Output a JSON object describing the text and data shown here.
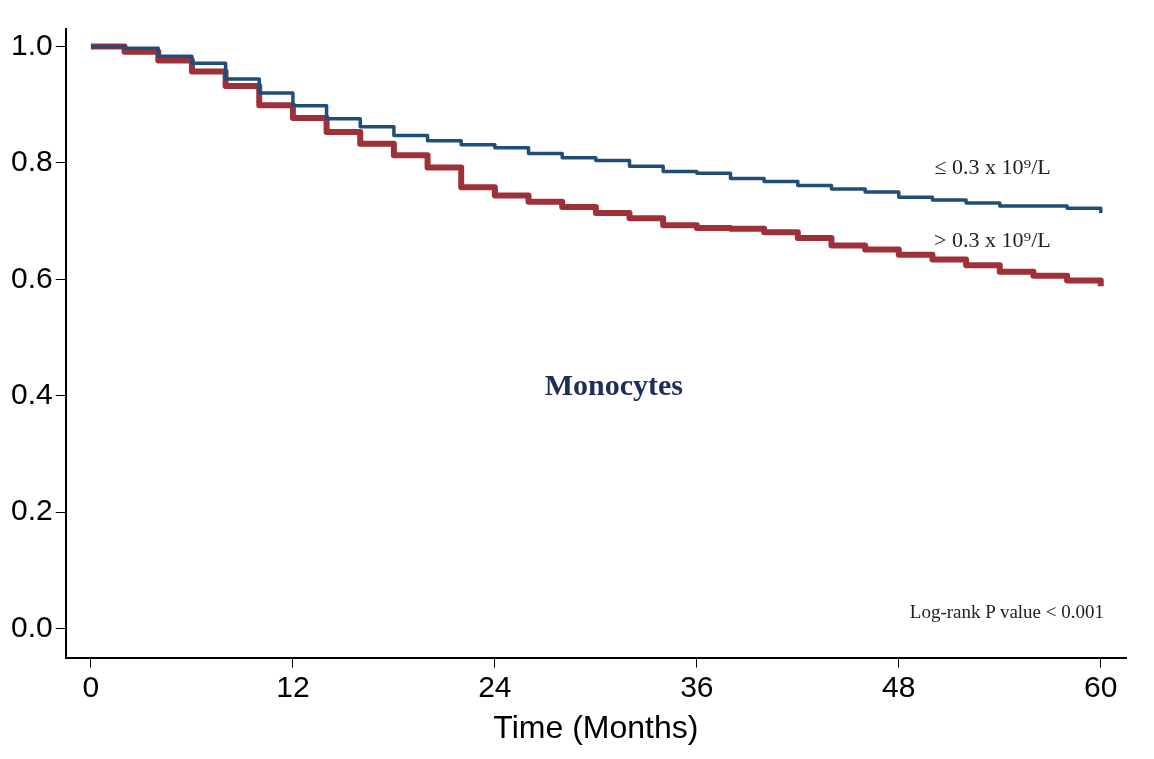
{
  "chart_data": {
    "type": "step",
    "xlabel": "Time (Months)",
    "x": [
      0,
      2,
      4,
      6,
      8,
      10,
      12,
      14,
      16,
      18,
      20,
      22,
      24,
      26,
      28,
      30,
      32,
      34,
      36,
      38,
      40,
      42,
      44,
      46,
      48,
      50,
      52,
      54,
      56,
      58,
      60
    ],
    "series": [
      {
        "name": "≤ 0.3 x 10⁹/L",
        "color": "#1f4e79",
        "values": [
          1.0,
          0.997,
          0.983,
          0.971,
          0.944,
          0.92,
          0.898,
          0.876,
          0.862,
          0.847,
          0.838,
          0.831,
          0.826,
          0.816,
          0.809,
          0.804,
          0.794,
          0.785,
          0.782,
          0.773,
          0.768,
          0.761,
          0.755,
          0.75,
          0.741,
          0.736,
          0.731,
          0.726,
          0.726,
          0.722,
          0.714
        ]
      },
      {
        "name": "> 0.3 x 10⁹/L",
        "color": "#9e3039",
        "values": [
          1.0,
          0.991,
          0.976,
          0.957,
          0.932,
          0.899,
          0.877,
          0.853,
          0.833,
          0.813,
          0.792,
          0.758,
          0.744,
          0.733,
          0.724,
          0.714,
          0.705,
          0.693,
          0.688,
          0.687,
          0.681,
          0.671,
          0.658,
          0.651,
          0.642,
          0.634,
          0.624,
          0.613,
          0.606,
          0.598,
          0.588
        ]
      }
    ],
    "annotations": [
      "Monocytes",
      "Log-rank P value < 0.001"
    ],
    "xlim": [
      -1.5,
      61.5
    ],
    "xticks": [
      0,
      12,
      24,
      36,
      48,
      60
    ],
    "ylim": [
      -0.05,
      1.03
    ],
    "yticks": [
      {
        "value": 0,
        "label": "0.0"
      },
      0.2,
      0.4,
      0.6,
      0.8,
      {
        "value": 1,
        "label": "1.0"
      }
    ],
    "grid": false,
    "legend": false,
    "line_style": "solid",
    "marker": "none"
  }
}
